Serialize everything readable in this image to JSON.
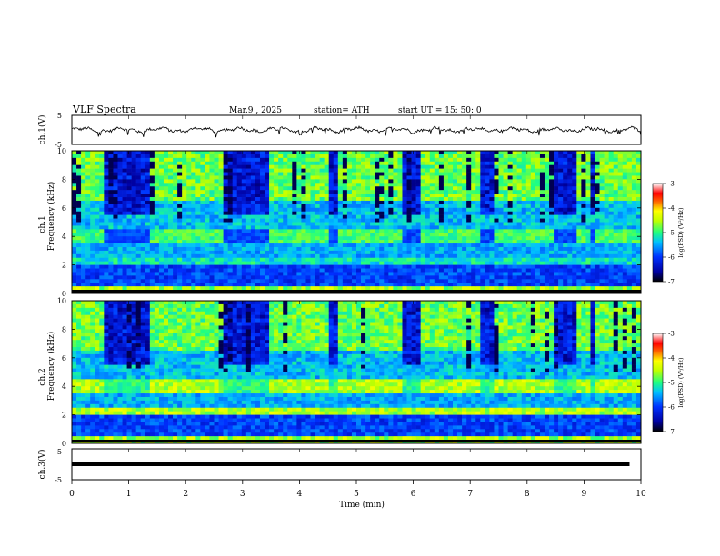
{
  "header": {
    "title": "VLF  Spectra",
    "date": "Mar.9  , 2025",
    "station": "station= ATH",
    "start": "start  UT  =    15: 50: 0"
  },
  "colorbar": {
    "label": "log(PSD) (V²/Hz)",
    "ticks": [
      -3,
      -4,
      -5,
      -6,
      -7
    ]
  },
  "chart_data": [
    {
      "type": "line",
      "name": "ch.1 waveform",
      "ylabel": "ch.1(V)",
      "ylim": [
        -5,
        5
      ],
      "yticks": [
        5,
        -5
      ],
      "xlim": [
        0,
        10
      ],
      "level": 0.0,
      "amplitude": 1.0
    },
    {
      "type": "heatmap",
      "ylabel_top": "ch.1",
      "ylabel": "Frequency (kHz)",
      "ylim": [
        0,
        10
      ],
      "yticks": [
        0,
        2,
        4,
        6,
        8,
        10
      ],
      "xlim": [
        0,
        10
      ],
      "quiet_intervals_min": [
        [
          0.6,
          1.4
        ],
        [
          2.7,
          3.5
        ],
        [
          4.5,
          4.7
        ],
        [
          5.8,
          6.1
        ],
        [
          7.2,
          7.4
        ],
        [
          8.5,
          8.9
        ],
        [
          9.1,
          9.2
        ]
      ],
      "burst_intervals_min": [
        [
          0.6,
          1.4
        ],
        [
          2.7,
          3.5
        ],
        [
          4.5,
          4.7
        ],
        [
          5.8,
          6.1
        ],
        [
          7.2,
          7.4
        ],
        [
          8.5,
          8.9
        ],
        [
          9.1,
          9.2
        ]
      ]
    },
    {
      "type": "heatmap",
      "ylabel_top": "ch.2",
      "ylabel": "Frequency (kHz)",
      "ylim": [
        0,
        10
      ],
      "yticks": [
        0,
        2,
        4,
        6,
        8,
        10
      ],
      "xlim": [
        0,
        10
      ],
      "burst_intervals_min": [
        [
          0.6,
          1.4
        ],
        [
          2.7,
          3.5
        ],
        [
          4.5,
          4.7
        ],
        [
          5.8,
          6.1
        ],
        [
          7.2,
          7.4
        ],
        [
          8.5,
          8.9
        ],
        [
          9.1,
          9.2
        ]
      ]
    },
    {
      "type": "line",
      "name": "ch.3 waveform",
      "ylabel": "ch.3(V)",
      "ylim": [
        -5,
        5
      ],
      "yticks": [
        5,
        -5
      ],
      "xlim": [
        0,
        10
      ],
      "level": 0.0,
      "amplitude": 0.0
    }
  ],
  "xaxis": {
    "label": "Time  (min)",
    "ticks": [
      0,
      1,
      2,
      3,
      4,
      5,
      6,
      7,
      8,
      9,
      10
    ]
  }
}
